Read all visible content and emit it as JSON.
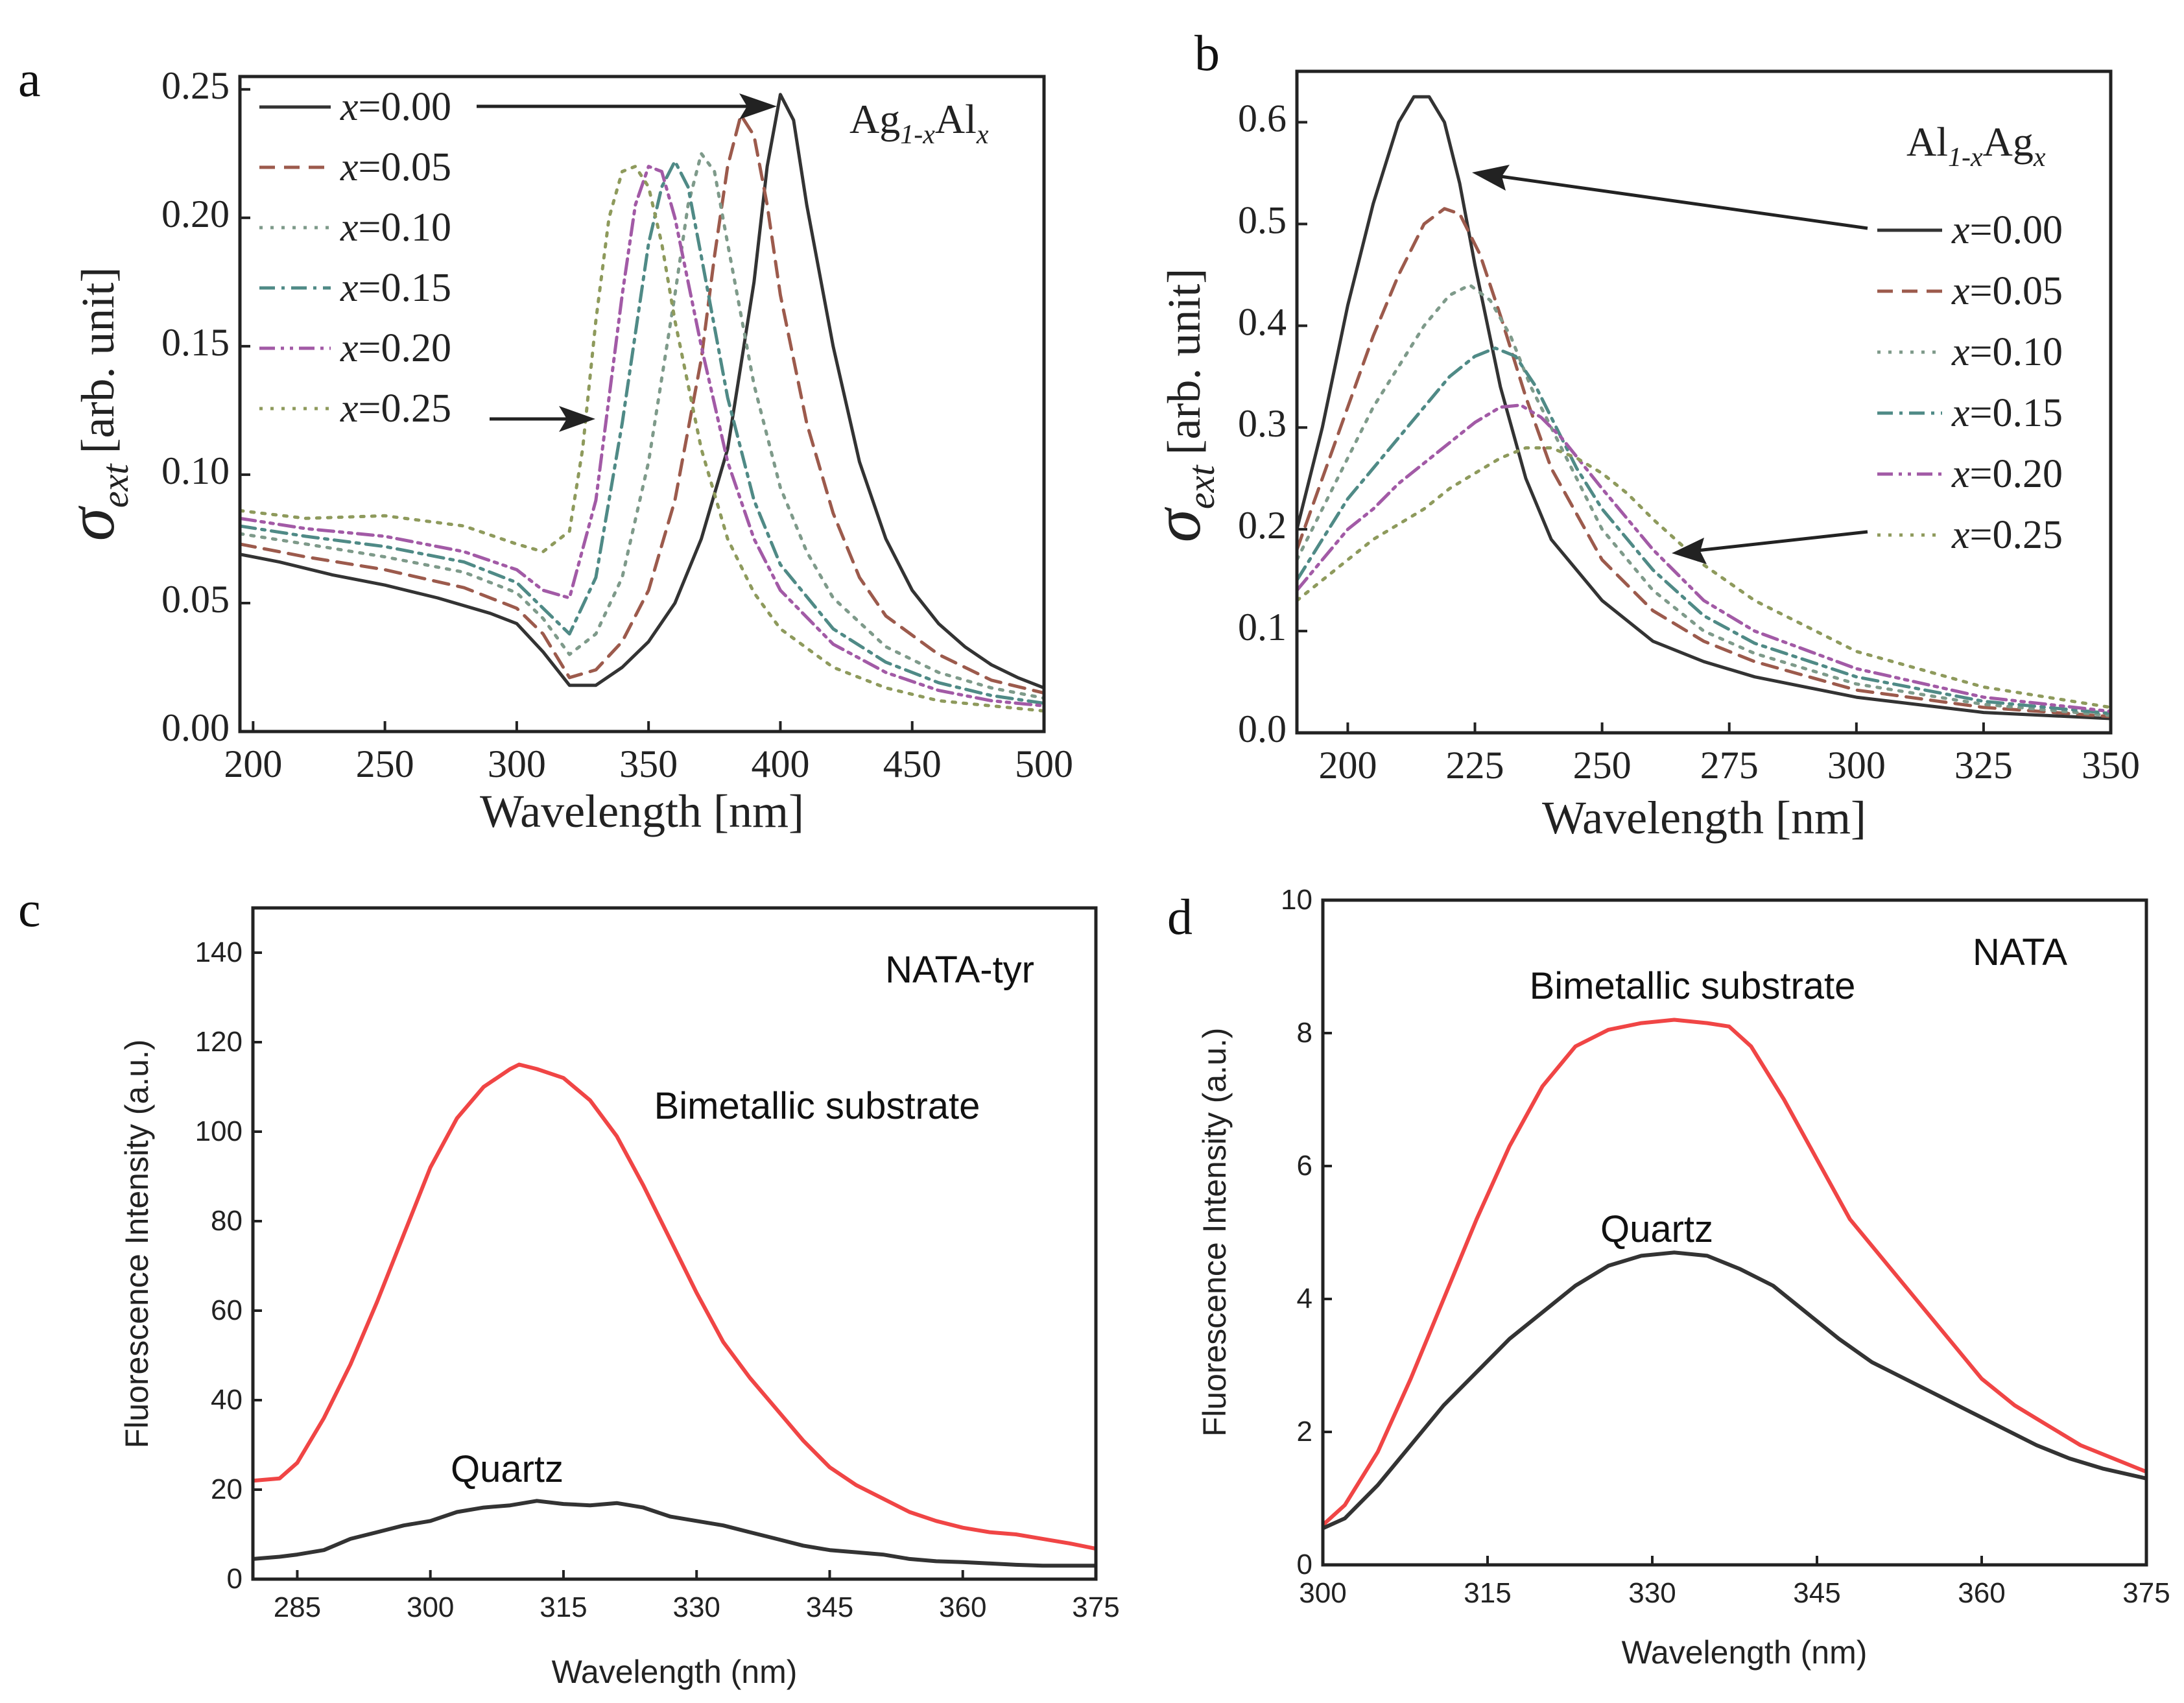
{
  "figure_labels": [
    "a",
    "b",
    "c",
    "d"
  ],
  "chart_data": [
    {
      "panel": "a",
      "type": "line",
      "title": "",
      "annotation_parts": {
        "base1": "Ag",
        "sub1": "1-x",
        "base2": "Al",
        "sub2": "x"
      },
      "xlabel": "Wavelength [nm]",
      "ylabel_symbol": "σ",
      "ylabel_sub": "ext",
      "ylabel_rest": "[arb. unit]",
      "xlim": [
        195,
        500
      ],
      "ylim": [
        0.0,
        0.255
      ],
      "xticks": [
        200,
        250,
        300,
        350,
        400,
        450,
        500
      ],
      "yticks": [
        0.0,
        0.05,
        0.1,
        0.15,
        0.2,
        0.25
      ],
      "ytick_labels": [
        "0.00",
        "0.05",
        "0.10",
        "0.15",
        "0.20",
        "0.25"
      ],
      "legend_position": "top-left",
      "series": [
        {
          "name": "x=0.00",
          "var": "x",
          "val": "=0.00",
          "color": "#333333",
          "dash": "solid",
          "x": [
            195,
            210,
            230,
            250,
            270,
            290,
            300,
            310,
            320,
            330,
            340,
            350,
            360,
            370,
            380,
            390,
            395,
            400,
            405,
            410,
            420,
            430,
            440,
            450,
            460,
            470,
            480,
            490,
            500
          ],
          "y": [
            0.069,
            0.066,
            0.061,
            0.057,
            0.052,
            0.046,
            0.042,
            0.031,
            0.018,
            0.018,
            0.025,
            0.035,
            0.05,
            0.075,
            0.11,
            0.175,
            0.22,
            0.248,
            0.238,
            0.205,
            0.15,
            0.105,
            0.075,
            0.055,
            0.042,
            0.033,
            0.026,
            0.021,
            0.017
          ]
        },
        {
          "name": "x=0.05",
          "var": "x",
          "val": "=0.05",
          "color": "#9c5a4c",
          "dash": "dash",
          "x": [
            195,
            220,
            250,
            280,
            300,
            310,
            320,
            330,
            340,
            350,
            360,
            370,
            375,
            380,
            385,
            390,
            395,
            400,
            410,
            420,
            430,
            440,
            460,
            480,
            500
          ],
          "y": [
            0.073,
            0.068,
            0.063,
            0.056,
            0.048,
            0.038,
            0.021,
            0.024,
            0.035,
            0.055,
            0.09,
            0.145,
            0.185,
            0.22,
            0.24,
            0.232,
            0.205,
            0.17,
            0.12,
            0.085,
            0.06,
            0.045,
            0.03,
            0.02,
            0.015
          ]
        },
        {
          "name": "x=0.10",
          "var": "x",
          "val": "=0.10",
          "color": "#7e9a8a",
          "dash": "dot",
          "x": [
            195,
            220,
            250,
            280,
            300,
            310,
            320,
            330,
            340,
            350,
            360,
            365,
            370,
            375,
            380,
            390,
            400,
            410,
            420,
            440,
            460,
            480,
            500
          ],
          "y": [
            0.077,
            0.073,
            0.068,
            0.062,
            0.054,
            0.044,
            0.03,
            0.038,
            0.06,
            0.105,
            0.17,
            0.205,
            0.225,
            0.218,
            0.19,
            0.135,
            0.095,
            0.07,
            0.052,
            0.033,
            0.023,
            0.017,
            0.013
          ]
        },
        {
          "name": "x=0.15",
          "var": "x",
          "val": "=0.15",
          "color": "#4f8a86",
          "dash": "dashdot",
          "x": [
            195,
            220,
            250,
            280,
            300,
            310,
            320,
            330,
            340,
            350,
            355,
            360,
            365,
            370,
            380,
            390,
            400,
            420,
            440,
            460,
            480,
            500
          ],
          "y": [
            0.08,
            0.076,
            0.072,
            0.066,
            0.058,
            0.048,
            0.038,
            0.06,
            0.12,
            0.19,
            0.212,
            0.222,
            0.212,
            0.185,
            0.13,
            0.09,
            0.065,
            0.04,
            0.027,
            0.019,
            0.014,
            0.011
          ]
        },
        {
          "name": "x=0.20",
          "var": "x",
          "val": "=0.20",
          "color": "#a25aa6",
          "dash": "dashdotdot",
          "x": [
            195,
            220,
            250,
            280,
            300,
            310,
            320,
            330,
            340,
            345,
            350,
            355,
            360,
            370,
            380,
            390,
            400,
            420,
            440,
            460,
            480,
            500
          ],
          "y": [
            0.083,
            0.079,
            0.076,
            0.07,
            0.063,
            0.055,
            0.052,
            0.09,
            0.17,
            0.205,
            0.22,
            0.218,
            0.2,
            0.15,
            0.105,
            0.075,
            0.055,
            0.034,
            0.023,
            0.016,
            0.012,
            0.01
          ]
        },
        {
          "name": "x=0.25",
          "var": "x",
          "val": "=0.25",
          "color": "#8e9a5c",
          "dash": "dot",
          "x": [
            195,
            220,
            250,
            280,
            300,
            310,
            320,
            325,
            330,
            335,
            340,
            345,
            350,
            355,
            360,
            370,
            380,
            390,
            400,
            420,
            440,
            460,
            480,
            500
          ],
          "y": [
            0.086,
            0.083,
            0.084,
            0.08,
            0.073,
            0.07,
            0.078,
            0.11,
            0.16,
            0.2,
            0.218,
            0.22,
            0.212,
            0.19,
            0.16,
            0.11,
            0.075,
            0.054,
            0.04,
            0.025,
            0.017,
            0.012,
            0.01,
            0.008
          ]
        }
      ]
    },
    {
      "panel": "b",
      "type": "line",
      "title": "",
      "annotation_parts": {
        "base1": "Al",
        "sub1": "1-x",
        "base2": "Ag",
        "sub2": "x"
      },
      "xlabel": "Wavelength [nm]",
      "ylabel_symbol": "σ",
      "ylabel_sub": "ext",
      "ylabel_rest": "[arb. unit]",
      "xlim": [
        190,
        350
      ],
      "ylim": [
        0.0,
        0.65
      ],
      "xticks": [
        200,
        225,
        250,
        275,
        300,
        325,
        350
      ],
      "xtick_labels": [
        "200",
        "225",
        "250",
        "275",
        "300",
        "325",
        "350"
      ],
      "yticks": [
        0.0,
        0.1,
        0.2,
        0.3,
        0.4,
        0.5,
        0.6
      ],
      "ytick_labels": [
        "0.0",
        "0.1",
        "0.2",
        "0.3",
        "0.4",
        "0.5",
        "0.6"
      ],
      "legend_position": "right",
      "series": [
        {
          "name": "x=0.00",
          "var": "x",
          "val": "=0.00",
          "color": "#333333",
          "dash": "solid",
          "x": [
            190,
            195,
            200,
            205,
            210,
            213,
            216,
            219,
            222,
            225,
            230,
            235,
            240,
            250,
            260,
            270,
            280,
            300,
            325,
            350
          ],
          "y": [
            0.2,
            0.3,
            0.42,
            0.52,
            0.6,
            0.625,
            0.625,
            0.6,
            0.54,
            0.46,
            0.34,
            0.25,
            0.19,
            0.13,
            0.09,
            0.07,
            0.055,
            0.035,
            0.02,
            0.014
          ]
        },
        {
          "name": "x=0.05",
          "var": "x",
          "val": "=0.05",
          "color": "#9c5a4c",
          "dash": "dash",
          "x": [
            190,
            195,
            200,
            205,
            210,
            215,
            219,
            222,
            226,
            230,
            235,
            240,
            250,
            260,
            270,
            280,
            300,
            325,
            350
          ],
          "y": [
            0.18,
            0.25,
            0.32,
            0.39,
            0.45,
            0.5,
            0.515,
            0.51,
            0.47,
            0.41,
            0.33,
            0.26,
            0.17,
            0.12,
            0.09,
            0.07,
            0.042,
            0.025,
            0.016
          ]
        },
        {
          "name": "x=0.10",
          "var": "x",
          "val": "=0.10",
          "color": "#7e9a8a",
          "dash": "dot",
          "x": [
            190,
            195,
            200,
            205,
            210,
            215,
            220,
            224,
            228,
            232,
            236,
            240,
            250,
            260,
            270,
            280,
            300,
            325,
            350
          ],
          "y": [
            0.17,
            0.22,
            0.27,
            0.32,
            0.36,
            0.4,
            0.43,
            0.44,
            0.425,
            0.39,
            0.34,
            0.3,
            0.2,
            0.14,
            0.1,
            0.078,
            0.048,
            0.028,
            0.017
          ]
        },
        {
          "name": "x=0.15",
          "var": "x",
          "val": "=0.15",
          "color": "#4f8a86",
          "dash": "dashdot",
          "x": [
            190,
            195,
            200,
            205,
            210,
            215,
            220,
            225,
            229,
            233,
            237,
            241,
            245,
            250,
            260,
            270,
            280,
            300,
            325,
            350
          ],
          "y": [
            0.15,
            0.19,
            0.23,
            0.26,
            0.29,
            0.32,
            0.35,
            0.37,
            0.378,
            0.37,
            0.34,
            0.3,
            0.26,
            0.22,
            0.16,
            0.115,
            0.088,
            0.055,
            0.031,
            0.019
          ]
        },
        {
          "name": "x=0.20",
          "var": "x",
          "val": "=0.20",
          "color": "#a25aa6",
          "dash": "dashdotdot",
          "x": [
            190,
            195,
            200,
            205,
            210,
            215,
            220,
            225,
            230,
            234,
            238,
            242,
            246,
            250,
            260,
            270,
            280,
            300,
            325,
            350
          ],
          "y": [
            0.14,
            0.17,
            0.2,
            0.22,
            0.245,
            0.265,
            0.285,
            0.305,
            0.32,
            0.322,
            0.31,
            0.29,
            0.265,
            0.24,
            0.18,
            0.13,
            0.1,
            0.063,
            0.035,
            0.021
          ]
        },
        {
          "name": "x=0.25",
          "var": "x",
          "val": "=0.25",
          "color": "#8e9a5c",
          "dash": "dot",
          "x": [
            190,
            195,
            200,
            205,
            210,
            215,
            220,
            225,
            230,
            235,
            240,
            245,
            250,
            255,
            260,
            270,
            280,
            300,
            325,
            350
          ],
          "y": [
            0.13,
            0.15,
            0.17,
            0.19,
            0.205,
            0.22,
            0.24,
            0.255,
            0.27,
            0.28,
            0.28,
            0.27,
            0.255,
            0.235,
            0.21,
            0.165,
            0.13,
            0.08,
            0.045,
            0.025
          ]
        }
      ]
    },
    {
      "panel": "c",
      "type": "line",
      "title": "",
      "annotation": "NATA-tyr",
      "xlabel": "Wavelength (nm)",
      "ylabel": "Fluorescence Intensity (a.u.)",
      "xlim": [
        280,
        375
      ],
      "ylim": [
        0,
        150
      ],
      "xticks": [
        285,
        300,
        315,
        330,
        345,
        360,
        375
      ],
      "yticks": [
        0,
        20,
        40,
        60,
        80,
        100,
        120,
        140
      ],
      "series": [
        {
          "name": "Bimetallic substrate",
          "color": "#f04545",
          "x": [
            280,
            283,
            285,
            288,
            291,
            294,
            297,
            300,
            303,
            306,
            309,
            310,
            312,
            315,
            318,
            321,
            324,
            327,
            330,
            333,
            336,
            339,
            342,
            345,
            348,
            351,
            354,
            357,
            360,
            363,
            366,
            369,
            372,
            375
          ],
          "y": [
            22,
            22.5,
            26,
            36,
            48,
            62,
            77,
            92,
            103,
            110,
            114,
            115,
            114,
            112,
            107,
            99,
            88,
            76,
            64,
            53,
            45,
            38,
            31,
            25,
            21,
            18,
            15,
            13,
            11.5,
            10.5,
            10,
            9,
            8,
            6.8
          ]
        },
        {
          "name": "Quartz",
          "color": "#333333",
          "x": [
            280,
            283,
            285,
            288,
            291,
            294,
            297,
            300,
            303,
            306,
            309,
            312,
            315,
            318,
            321,
            324,
            327,
            330,
            333,
            336,
            339,
            342,
            345,
            348,
            351,
            354,
            357,
            360,
            363,
            366,
            369,
            372,
            375
          ],
          "y": [
            4.5,
            5,
            5.5,
            6.5,
            9,
            10.5,
            12,
            13,
            15,
            16,
            16.5,
            17.5,
            16.8,
            16.5,
            17,
            16,
            14,
            13,
            12,
            10.5,
            9,
            7.5,
            6.5,
            6,
            5.5,
            4.5,
            4,
            3.8,
            3.5,
            3.2,
            3,
            3,
            3
          ]
        }
      ]
    },
    {
      "panel": "d",
      "type": "line",
      "title": "",
      "annotation": "NATA",
      "xlabel": "Wavelength (nm)",
      "ylabel": "Fluorescence Intensity (a.u.)",
      "xlim": [
        300,
        375
      ],
      "ylim": [
        0,
        10
      ],
      "xticks": [
        300,
        315,
        330,
        345,
        360,
        375
      ],
      "yticks": [
        0,
        2,
        4,
        6,
        8,
        10
      ],
      "series": [
        {
          "name": "Bimetallic substrate",
          "color": "#f04545",
          "x": [
            300,
            302,
            305,
            308,
            311,
            314,
            317,
            320,
            323,
            326,
            329,
            332,
            335,
            337,
            339,
            342,
            345,
            348,
            351,
            354,
            357,
            360,
            363,
            366,
            369,
            372,
            375
          ],
          "y": [
            0.6,
            0.9,
            1.7,
            2.8,
            4,
            5.2,
            6.3,
            7.2,
            7.8,
            8.05,
            8.15,
            8.2,
            8.15,
            8.1,
            7.8,
            7,
            6.1,
            5.2,
            4.6,
            4,
            3.4,
            2.8,
            2.4,
            2.1,
            1.8,
            1.6,
            1.4
          ]
        },
        {
          "name": "Quartz",
          "color": "#333333",
          "x": [
            300,
            302,
            305,
            308,
            311,
            314,
            317,
            320,
            323,
            326,
            329,
            332,
            335,
            338,
            341,
            344,
            347,
            350,
            353,
            356,
            359,
            362,
            365,
            368,
            371,
            375
          ],
          "y": [
            0.55,
            0.7,
            1.2,
            1.8,
            2.4,
            2.9,
            3.4,
            3.8,
            4.2,
            4.5,
            4.65,
            4.7,
            4.65,
            4.45,
            4.2,
            3.8,
            3.4,
            3.05,
            2.8,
            2.55,
            2.3,
            2.05,
            1.8,
            1.6,
            1.45,
            1.3
          ]
        }
      ]
    }
  ]
}
